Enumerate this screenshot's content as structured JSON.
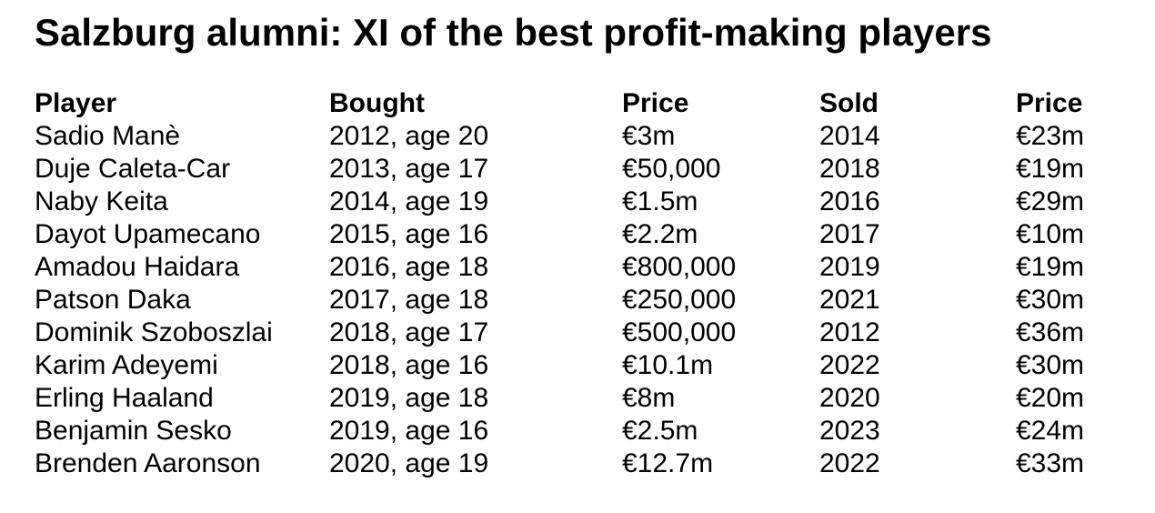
{
  "title": "Salzburg alumni: XI of the best profit-making players",
  "columns": [
    "Player",
    "Bought",
    "Price",
    "Sold",
    "Price"
  ],
  "rows": [
    [
      "Sadio Manè",
      "2012, age 20",
      "€3m",
      "2014",
      "€23m"
    ],
    [
      "Duje Caleta-Car",
      "2013, age 17",
      "€50,000",
      "2018",
      "€19m"
    ],
    [
      "Naby Keita",
      "2014, age 19",
      "€1.5m",
      "2016",
      "€29m"
    ],
    [
      "Dayot Upamecano",
      "2015, age 16",
      "€2.2m",
      "2017",
      "€10m"
    ],
    [
      "Amadou Haidara",
      "2016, age 18",
      "€800,000",
      "2019",
      "€19m"
    ],
    [
      "Patson Daka",
      "2017, age 18",
      "€250,000",
      "2021",
      "€30m"
    ],
    [
      "Dominik Szoboszlai",
      "2018, age 17",
      "€500,000",
      "2012",
      "€36m"
    ],
    [
      "Karim Adeyemi",
      "2018, age 16",
      "€10.1m",
      "2022",
      "€30m"
    ],
    [
      "Erling Haaland",
      "2019, age 18",
      "€8m",
      "2020",
      "€20m"
    ],
    [
      "Benjamin Sesko",
      "2019, age 16",
      "€2.5m",
      "2023",
      "€24m"
    ],
    [
      "Brenden Aaronson",
      "2020, age 19",
      "€12.7m",
      "2022",
      "€33m"
    ]
  ]
}
